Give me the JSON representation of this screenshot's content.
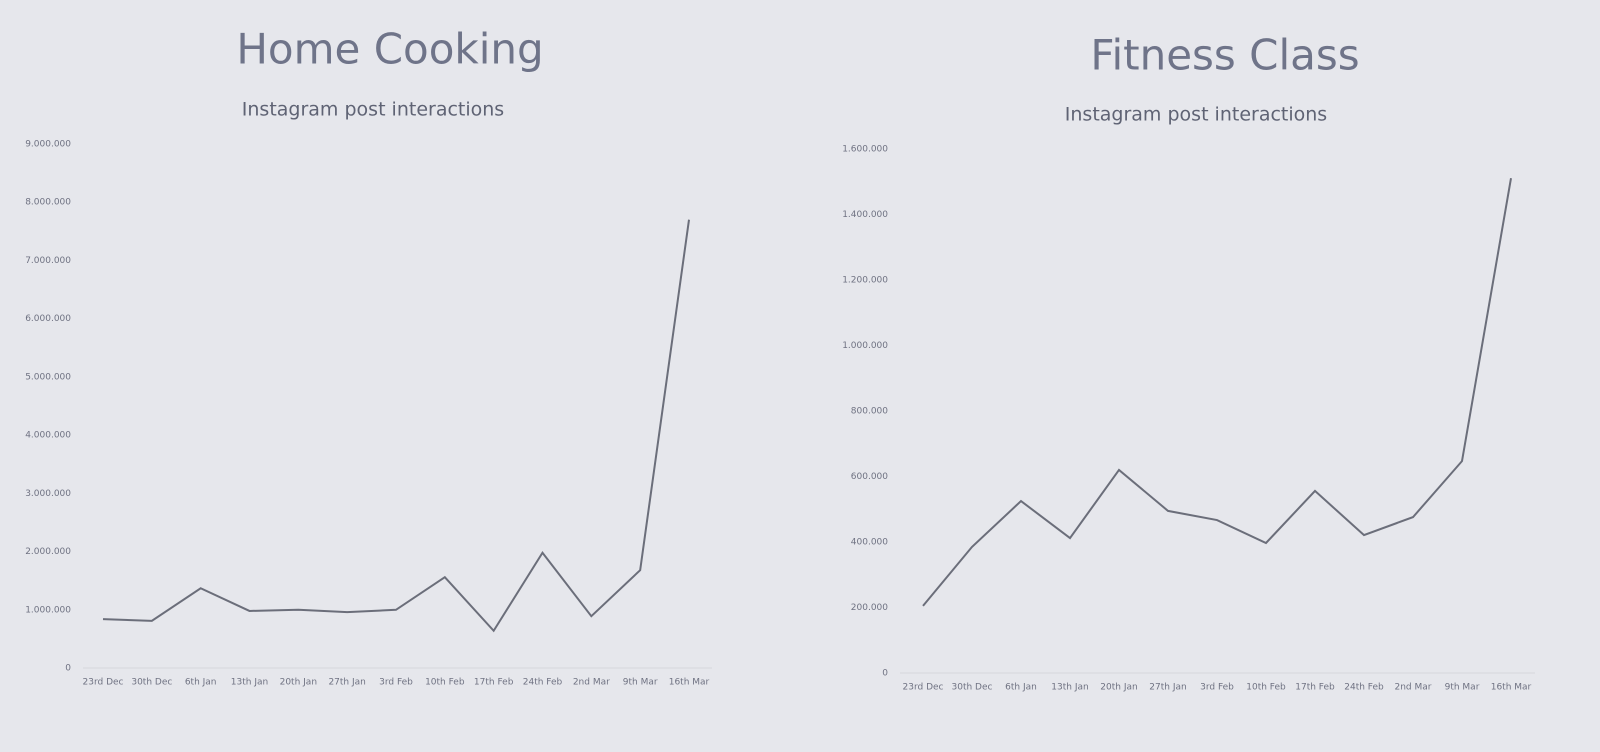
{
  "chart_data": [
    {
      "type": "line",
      "title": "Home Cooking",
      "subtitle": "Instagram post interactions",
      "categories": [
        "23rd Dec",
        "30th Dec",
        "6th Jan",
        "13th Jan",
        "20th Jan",
        "27th Jan",
        "3rd Feb",
        "10th Feb",
        "17th Feb",
        "24th Feb",
        "2nd Mar",
        "9th Mar",
        "16th Mar"
      ],
      "values": [
        840000,
        810000,
        1370000,
        980000,
        1000000,
        960000,
        1000000,
        1560000,
        640000,
        1980000,
        890000,
        1680000,
        7700000
      ],
      "color": "#6b6e7a",
      "ylim": [
        0,
        9000000
      ],
      "yticks": [
        0,
        {
          "value": 1000000,
          "label": "1.000.000"
        },
        {
          "value": 2000000,
          "label": "2.000.000"
        },
        {
          "value": 3000000,
          "label": "3.000.000"
        },
        {
          "value": 4000000,
          "label": "4.000.000"
        },
        {
          "value": 5000000,
          "label": "5.000.000"
        },
        {
          "value": 6000000,
          "label": "6.000.000"
        },
        {
          "value": 7000000,
          "label": "7.000.000"
        },
        {
          "value": 8000000,
          "label": "8.000.000"
        },
        {
          "value": 9000000,
          "label": "9.000.000"
        }
      ]
    },
    {
      "type": "line",
      "title": "Fitness Class",
      "subtitle": "Instagram post interactions",
      "categories": [
        "23rd Dec",
        "30th Dec",
        "6th Jan",
        "13th Jan",
        "20th Jan",
        "27th Jan",
        "3rd Feb",
        "10th Feb",
        "17th Feb",
        "24th Feb",
        "2nd Mar",
        "9th Mar",
        "16th Mar"
      ],
      "values": [
        205000,
        385000,
        525000,
        412000,
        620000,
        495000,
        467000,
        397000,
        556000,
        421000,
        476000,
        647000,
        1511000
      ],
      "color": "#6b6e7a",
      "ylim": [
        0,
        1600000
      ],
      "yticks": [
        0,
        {
          "value": 200000,
          "label": "200.000"
        },
        {
          "value": 400000,
          "label": "400.000"
        },
        {
          "value": 600000,
          "label": "600.000"
        },
        {
          "value": 800000,
          "label": "800.000"
        },
        {
          "value": 1000000,
          "label": "1.000.000"
        },
        {
          "value": 1200000,
          "label": "1.200.000"
        },
        {
          "value": 1400000,
          "label": "1.400.000"
        },
        {
          "value": 1600000,
          "label": "1.600.000"
        }
      ]
    }
  ]
}
